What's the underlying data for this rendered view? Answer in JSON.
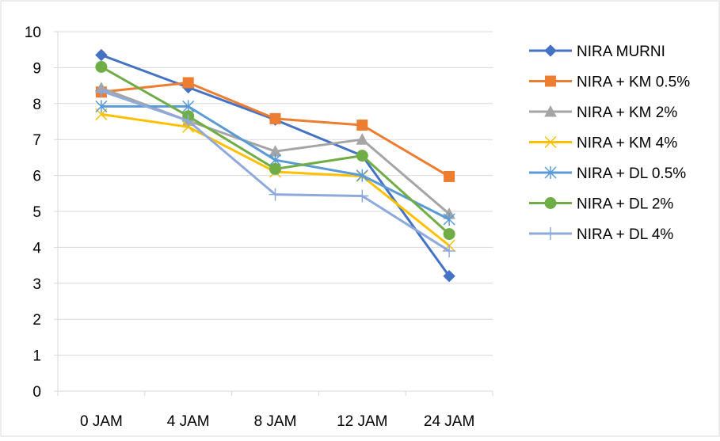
{
  "chart_data": {
    "type": "line",
    "categories": [
      "0 JAM",
      "4 JAM",
      "8 JAM",
      "12 JAM",
      "24 JAM"
    ],
    "ylim": [
      0,
      10
    ],
    "yticks": [
      0,
      1,
      2,
      3,
      4,
      5,
      6,
      7,
      8,
      9,
      10
    ],
    "grid": true,
    "legend_position": "right",
    "series": [
      {
        "name": "NIRA MURNI",
        "color": "#4472C4",
        "marker": "diamond",
        "values": [
          9.35,
          8.45,
          7.55,
          6.55,
          3.2
        ]
      },
      {
        "name": "NIRA + KM 0.5%",
        "color": "#ED7D31",
        "marker": "square",
        "values": [
          8.32,
          8.58,
          7.58,
          7.4,
          5.97
        ]
      },
      {
        "name": "NIRA + KM 2%",
        "color": "#A5A5A5",
        "marker": "triangle",
        "values": [
          8.43,
          7.52,
          6.67,
          7.0,
          4.93
        ]
      },
      {
        "name": "NIRA + KM 4%",
        "color": "#FFC000",
        "marker": "x",
        "values": [
          7.7,
          7.35,
          6.1,
          5.98,
          4.05
        ]
      },
      {
        "name": "NIRA + DL 0.5%",
        "color": "#5B9BD5",
        "marker": "star",
        "values": [
          7.92,
          7.92,
          6.43,
          6.0,
          4.78
        ]
      },
      {
        "name": "NIRA + DL 2%",
        "color": "#70AD47",
        "marker": "circle",
        "values": [
          9.02,
          7.65,
          6.18,
          6.55,
          4.37
        ]
      },
      {
        "name": "NIRA + DL 4%",
        "color": "#8EA9DB",
        "marker": "plus",
        "values": [
          8.35,
          7.52,
          5.47,
          5.43,
          3.9
        ]
      }
    ]
  }
}
